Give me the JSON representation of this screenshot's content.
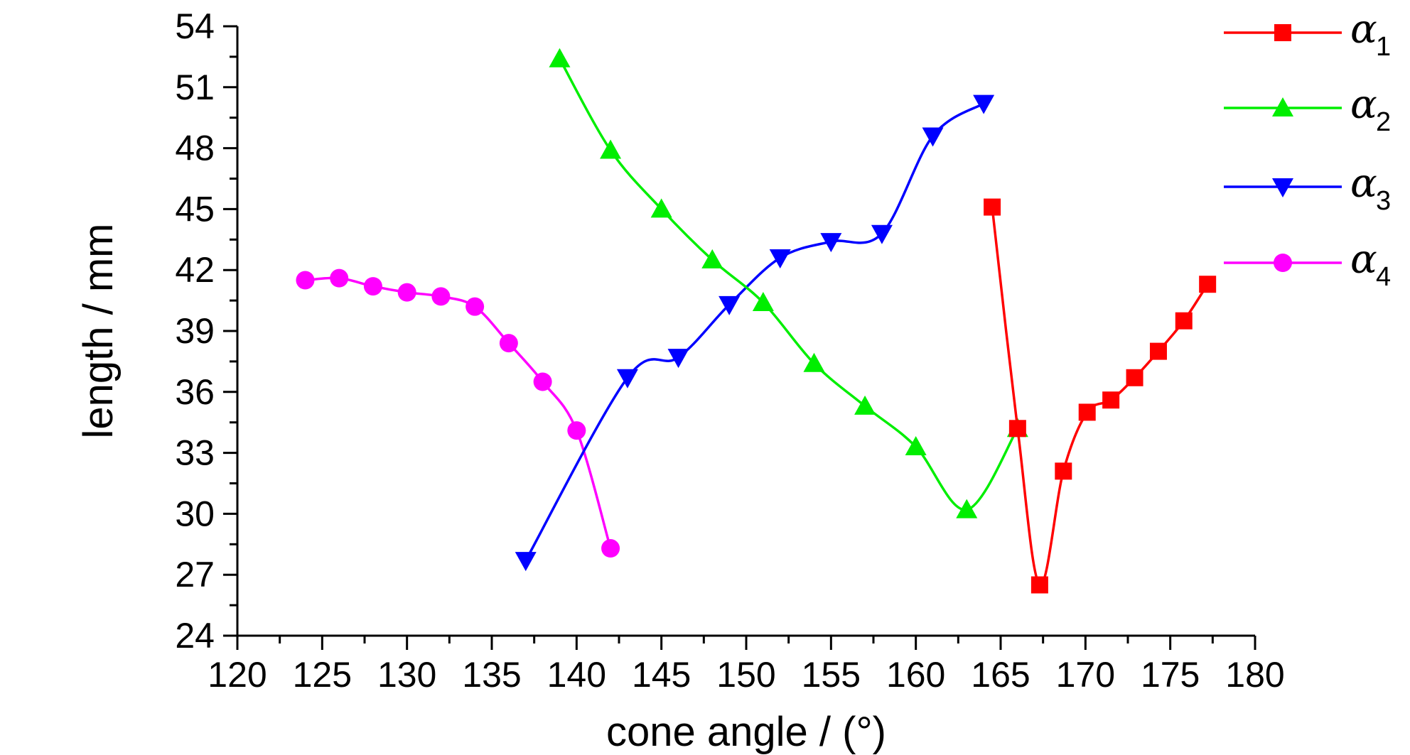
{
  "chart_data": {
    "type": "line",
    "xlabel": "cone angle / (°)",
    "ylabel": "length / mm",
    "xlim": [
      120,
      180
    ],
    "ylim": [
      24,
      54
    ],
    "xticks": [
      "120",
      "125",
      "130",
      "135",
      "140",
      "145",
      "150",
      "155",
      "160",
      "165",
      "170",
      "175",
      "180"
    ],
    "yticks": [
      "24",
      "27",
      "30",
      "33",
      "36",
      "39",
      "42",
      "45",
      "48",
      "51",
      "54"
    ],
    "grid": false,
    "legend_position": "top-right",
    "series": [
      {
        "name": "α",
        "subscript": "1",
        "color": "#ff0000",
        "marker": "square",
        "x": [
          164.5,
          166,
          167.3,
          168.7,
          170.1,
          171.5,
          172.9,
          174.3,
          175.8,
          177.2
        ],
        "y": [
          45.1,
          34.2,
          26.5,
          32.1,
          35.0,
          35.6,
          36.7,
          38.0,
          39.5,
          41.3
        ]
      },
      {
        "name": "α",
        "subscript": "2",
        "color": "#00ee00",
        "marker": "triangle-up",
        "x": [
          139,
          142,
          145,
          148,
          151,
          154,
          157,
          160,
          163,
          166
        ],
        "y": [
          52.4,
          47.9,
          45.0,
          42.5,
          40.4,
          37.4,
          35.3,
          33.3,
          30.2,
          34.2
        ]
      },
      {
        "name": "α",
        "subscript": "3",
        "color": "#0000ff",
        "marker": "triangle-down",
        "x": [
          137,
          143,
          146,
          149,
          152,
          155,
          158,
          161,
          164
        ],
        "y": [
          27.7,
          36.7,
          37.7,
          40.3,
          42.6,
          43.4,
          43.8,
          48.6,
          50.2
        ]
      },
      {
        "name": "α",
        "subscript": "4",
        "color": "#ff00ff",
        "marker": "circle",
        "x": [
          124,
          126,
          128,
          130,
          132,
          134,
          136,
          138,
          140,
          142
        ],
        "y": [
          41.5,
          41.6,
          41.2,
          40.9,
          40.7,
          40.2,
          38.4,
          36.5,
          34.1,
          28.3
        ]
      }
    ]
  }
}
